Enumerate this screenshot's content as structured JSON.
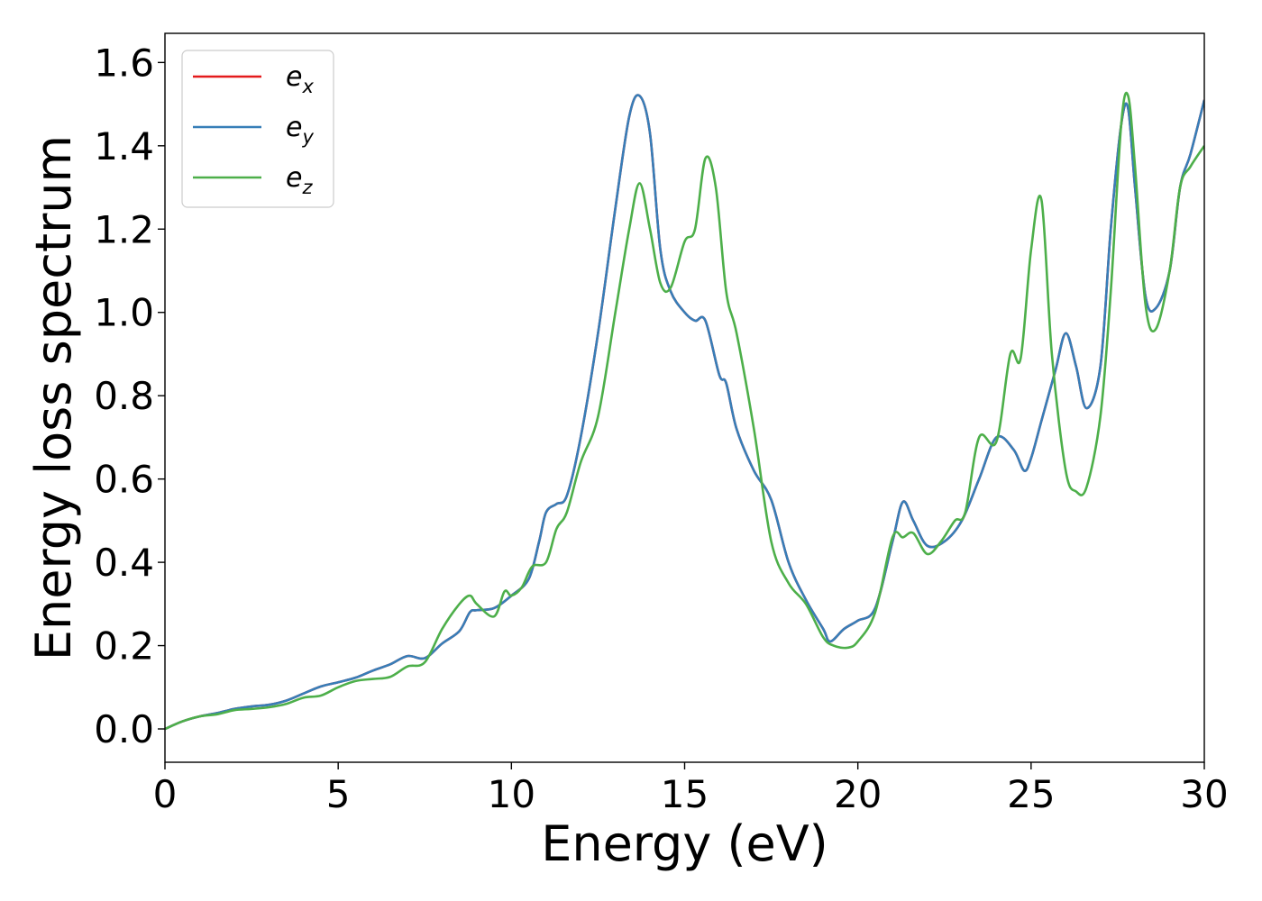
{
  "chart_data": {
    "type": "line",
    "xlabel": "Energy (eV)",
    "ylabel": "Energy loss spectrum",
    "xlim": [
      0,
      30
    ],
    "ylim": [
      -0.08,
      1.67
    ],
    "xticks": [
      0,
      5,
      10,
      15,
      20,
      25,
      30
    ],
    "xtick_labels": [
      "0",
      "5",
      "10",
      "15",
      "20",
      "25",
      "30"
    ],
    "yticks": [
      0.0,
      0.2,
      0.4,
      0.6,
      0.8,
      1.0,
      1.2,
      1.4,
      1.6
    ],
    "ytick_labels": [
      "0.0",
      "0.2",
      "0.4",
      "0.6",
      "0.8",
      "1.0",
      "1.2",
      "1.4",
      "1.6"
    ],
    "grid": false,
    "legend_position": "top-left",
    "series": [
      {
        "name": "e_x",
        "label_main": "e",
        "label_sub": "x",
        "color": "#e41a1c",
        "x": [
          0,
          0.5,
          1,
          1.5,
          2,
          2.5,
          3,
          3.5,
          4,
          4.5,
          5,
          5.5,
          6,
          6.5,
          7,
          7.5,
          8,
          8.5,
          8.8,
          9,
          9.5,
          10,
          10.5,
          10.8,
          11,
          11.3,
          11.6,
          12,
          12.5,
          13,
          13.4,
          13.7,
          14,
          14.3,
          14.6,
          15,
          15.3,
          15.6,
          16,
          16.2,
          16.5,
          17,
          17.5,
          18,
          18.5,
          19,
          19.2,
          19.6,
          20,
          20.5,
          21,
          21.3,
          21.6,
          22,
          22.5,
          23,
          23.5,
          24,
          24.5,
          24.8,
          25,
          25.3,
          25.7,
          26,
          26.3,
          26.6,
          27,
          27.3,
          27.6,
          27.8,
          28,
          28.3,
          28.6,
          29,
          29.3,
          29.6,
          30
        ],
        "y": [
          0,
          0.018,
          0.03,
          0.038,
          0.048,
          0.054,
          0.058,
          0.068,
          0.085,
          0.102,
          0.112,
          0.123,
          0.14,
          0.155,
          0.175,
          0.17,
          0.205,
          0.235,
          0.28,
          0.285,
          0.29,
          0.32,
          0.36,
          0.45,
          0.52,
          0.54,
          0.56,
          0.7,
          0.95,
          1.25,
          1.47,
          1.52,
          1.43,
          1.15,
          1.05,
          1.0,
          0.98,
          0.98,
          0.85,
          0.83,
          0.72,
          0.62,
          0.55,
          0.4,
          0.31,
          0.24,
          0.21,
          0.24,
          0.26,
          0.29,
          0.45,
          0.545,
          0.5,
          0.44,
          0.45,
          0.5,
          0.6,
          0.7,
          0.67,
          0.62,
          0.65,
          0.74,
          0.86,
          0.95,
          0.87,
          0.77,
          0.87,
          1.2,
          1.45,
          1.49,
          1.3,
          1.04,
          1.01,
          1.1,
          1.3,
          1.38,
          1.51
        ]
      },
      {
        "name": "e_y",
        "label_main": "e",
        "label_sub": "y",
        "color": "#377eb8",
        "x": [
          0,
          0.5,
          1,
          1.5,
          2,
          2.5,
          3,
          3.5,
          4,
          4.5,
          5,
          5.5,
          6,
          6.5,
          7,
          7.5,
          8,
          8.5,
          8.8,
          9,
          9.5,
          10,
          10.5,
          10.8,
          11,
          11.3,
          11.6,
          12,
          12.5,
          13,
          13.4,
          13.7,
          14,
          14.3,
          14.6,
          15,
          15.3,
          15.6,
          16,
          16.2,
          16.5,
          17,
          17.5,
          18,
          18.5,
          19,
          19.2,
          19.6,
          20,
          20.5,
          21,
          21.3,
          21.6,
          22,
          22.5,
          23,
          23.5,
          24,
          24.5,
          24.8,
          25,
          25.3,
          25.7,
          26,
          26.3,
          26.6,
          27,
          27.3,
          27.6,
          27.8,
          28,
          28.3,
          28.6,
          29,
          29.3,
          29.6,
          30
        ],
        "y": [
          0,
          0.018,
          0.03,
          0.038,
          0.048,
          0.054,
          0.058,
          0.068,
          0.085,
          0.102,
          0.112,
          0.123,
          0.14,
          0.155,
          0.175,
          0.17,
          0.205,
          0.235,
          0.28,
          0.285,
          0.29,
          0.32,
          0.36,
          0.45,
          0.52,
          0.54,
          0.56,
          0.7,
          0.95,
          1.25,
          1.47,
          1.52,
          1.43,
          1.15,
          1.05,
          1.0,
          0.98,
          0.98,
          0.85,
          0.83,
          0.72,
          0.62,
          0.55,
          0.4,
          0.31,
          0.24,
          0.21,
          0.24,
          0.26,
          0.29,
          0.45,
          0.545,
          0.5,
          0.44,
          0.45,
          0.5,
          0.6,
          0.7,
          0.67,
          0.62,
          0.65,
          0.74,
          0.86,
          0.95,
          0.87,
          0.77,
          0.87,
          1.2,
          1.45,
          1.49,
          1.3,
          1.04,
          1.01,
          1.1,
          1.3,
          1.38,
          1.51
        ]
      },
      {
        "name": "e_z",
        "label_main": "e",
        "label_sub": "z",
        "color": "#4daf4a",
        "x": [
          0,
          0.5,
          1,
          1.5,
          2,
          2.5,
          3,
          3.5,
          4,
          4.5,
          5,
          5.5,
          6,
          6.5,
          7,
          7.5,
          8,
          8.5,
          8.8,
          9,
          9.5,
          9.8,
          10,
          10.3,
          10.6,
          11,
          11.3,
          11.6,
          12,
          12.5,
          13,
          13.4,
          13.7,
          14,
          14.3,
          14.6,
          15,
          15.3,
          15.6,
          15.9,
          16.2,
          16.5,
          17,
          17.5,
          18,
          18.5,
          19,
          19.3,
          19.7,
          20,
          20.5,
          21,
          21.3,
          21.6,
          22,
          22.4,
          22.8,
          23.1,
          23.5,
          24,
          24.4,
          24.7,
          25,
          25.3,
          25.6,
          26,
          26.3,
          26.6,
          27,
          27.3,
          27.6,
          27.8,
          28,
          28.3,
          28.6,
          29,
          29.3,
          29.6,
          30
        ],
        "y": [
          0,
          0.018,
          0.03,
          0.035,
          0.045,
          0.048,
          0.052,
          0.06,
          0.075,
          0.08,
          0.1,
          0.115,
          0.12,
          0.125,
          0.15,
          0.16,
          0.24,
          0.3,
          0.32,
          0.3,
          0.27,
          0.33,
          0.32,
          0.34,
          0.39,
          0.4,
          0.48,
          0.52,
          0.64,
          0.75,
          1.0,
          1.2,
          1.31,
          1.2,
          1.07,
          1.06,
          1.17,
          1.2,
          1.37,
          1.3,
          1.05,
          0.95,
          0.72,
          0.45,
          0.35,
          0.3,
          0.22,
          0.2,
          0.195,
          0.21,
          0.28,
          0.46,
          0.46,
          0.47,
          0.42,
          0.45,
          0.5,
          0.52,
          0.7,
          0.69,
          0.9,
          0.89,
          1.15,
          1.27,
          0.9,
          0.62,
          0.57,
          0.58,
          0.75,
          1.05,
          1.45,
          1.52,
          1.35,
          1.02,
          0.96,
          1.1,
          1.3,
          1.35,
          1.4
        ]
      }
    ]
  }
}
